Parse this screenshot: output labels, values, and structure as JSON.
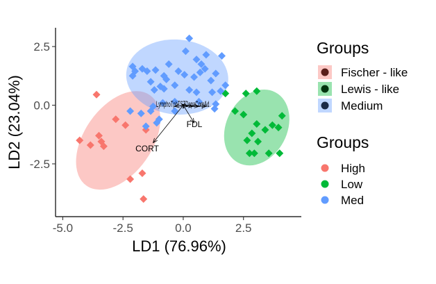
{
  "chart_data": {
    "type": "scatter",
    "xlabel": "LD1 (76.96%)",
    "ylabel": "LD2 (23.04%)",
    "xlim": [
      -5.3,
      4.9
    ],
    "ylim": [
      -4.75,
      3.3
    ],
    "xticks": [
      -5.0,
      -2.5,
      0.0,
      2.5
    ],
    "xtick_labels": [
      "-5.0",
      "-2.5",
      "0.0",
      "2.5"
    ],
    "yticks": [
      2.5,
      0.0,
      -2.5
    ],
    "ytick_labels": [
      "2.5",
      "0.0",
      "-2.5"
    ],
    "grid": false,
    "legend_position": "right",
    "ellipses": [
      {
        "group": "Fischer - like",
        "color": "#F8766D",
        "cx": -2.7,
        "cy": -1.5,
        "rx": 4.65,
        "ry": 1.9,
        "angle": -55
      },
      {
        "group": "Medium",
        "color": "#619CFF",
        "cx": -0.25,
        "cy": 1.2,
        "rx": 4.3,
        "ry": 2.1,
        "angle": 5
      },
      {
        "group": "Lewis - like",
        "color": "#00BA38",
        "cx": 3.05,
        "cy": -0.95,
        "rx": 3.35,
        "ry": 1.7,
        "angle": -62
      }
    ],
    "series": [
      {
        "name": "High",
        "color": "#F8766D",
        "points": [
          [
            -3.6,
            0.45
          ],
          [
            -2.8,
            -0.6
          ],
          [
            -3.5,
            -1.3
          ],
          [
            -3.4,
            -1.55
          ],
          [
            -3.3,
            -1.75
          ],
          [
            -4.3,
            -1.5
          ],
          [
            -3.85,
            -1.7
          ],
          [
            -2.4,
            -0.85
          ],
          [
            -1.7,
            -2.9
          ],
          [
            -2.2,
            -3.15
          ],
          [
            -1.65,
            -4.0
          ],
          [
            -1.55,
            -1.05
          ]
        ]
      },
      {
        "name": "Low",
        "color": "#00BA38",
        "points": [
          [
            2.6,
            0.5
          ],
          [
            3.05,
            0.6
          ],
          [
            2.15,
            -0.25
          ],
          [
            2.5,
            -0.4
          ],
          [
            3.05,
            -0.8
          ],
          [
            4.1,
            -0.45
          ],
          [
            3.7,
            -0.85
          ],
          [
            2.85,
            -1.2
          ],
          [
            3.4,
            -1.05
          ],
          [
            3.95,
            -0.95
          ],
          [
            2.65,
            -1.5
          ],
          [
            3.1,
            -1.55
          ],
          [
            2.75,
            -2.05
          ],
          [
            2.95,
            -2.05
          ],
          [
            3.55,
            -2.05
          ],
          [
            4.0,
            -2.05
          ],
          [
            1.75,
            0.5
          ]
        ]
      },
      {
        "name": "Med",
        "color": "#619CFF",
        "points": [
          [
            0.25,
            2.85
          ],
          [
            0.1,
            2.3
          ],
          [
            0.95,
            2.15
          ],
          [
            1.6,
            2.1
          ],
          [
            -2.1,
            1.65
          ],
          [
            -2.0,
            1.45
          ],
          [
            -1.7,
            1.55
          ],
          [
            -1.5,
            1.45
          ],
          [
            -1.15,
            1.5
          ],
          [
            -0.6,
            1.75
          ],
          [
            -0.2,
            1.45
          ],
          [
            0.55,
            1.95
          ],
          [
            0.75,
            1.75
          ],
          [
            0.9,
            1.55
          ],
          [
            0.7,
            1.4
          ],
          [
            1.35,
            1.35
          ],
          [
            -2.1,
            1.25
          ],
          [
            -1.35,
            1.0
          ],
          [
            -0.8,
            1.25
          ],
          [
            0.05,
            1.3
          ],
          [
            0.45,
            1.2
          ],
          [
            1.15,
            1.05
          ],
          [
            1.75,
            0.85
          ],
          [
            -0.8,
            0.7
          ],
          [
            -0.35,
            0.85
          ],
          [
            0.25,
            0.65
          ],
          [
            0.55,
            0.55
          ],
          [
            1.2,
            0.55
          ],
          [
            1.55,
            0.6
          ],
          [
            -1.2,
            0.65
          ],
          [
            -0.95,
            0.8
          ],
          [
            0.65,
            0.15
          ],
          [
            1.3,
            -0.15
          ],
          [
            1.35,
            0.05
          ],
          [
            -1.75,
            -0.35
          ],
          [
            -1.35,
            -0.25
          ],
          [
            -1.25,
            -0.05
          ],
          [
            -0.35,
            -0.25
          ],
          [
            -2.2,
            -0.25
          ],
          [
            -0.85,
            0.1
          ],
          [
            -1.0,
            -0.6
          ],
          [
            -1.55,
            -0.9
          ],
          [
            -1.1,
            -0.75
          ],
          [
            -0.7,
            1.1
          ],
          [
            -0.35,
            0.15
          ]
        ]
      }
    ],
    "arrows": [
      {
        "label": "CORT",
        "x": -1.25,
        "y": -1.6
      },
      {
        "label": "FDL",
        "x": 0.45,
        "y": -0.75
      },
      {
        "label": "Lympho",
        "x": -0.35,
        "y": -0.05
      },
      {
        "label": "Tph",
        "x": -0.05,
        "y": 0.05
      },
      {
        "label": "Prl",
        "x": 0.05,
        "y": 0.05
      },
      {
        "label": "TST",
        "x": 0.2,
        "y": -0.05
      },
      {
        "label": "Dopa",
        "x": 0.4,
        "y": -0.05
      },
      {
        "label": "Corp",
        "x": 0.65,
        "y": -0.05
      },
      {
        "label": "Ad.",
        "x": 0.95,
        "y": -0.05
      }
    ],
    "arrow_label_text": {
      "CORT": "CORT",
      "FDL": "FDL",
      "overlap": "Lymp‌h‌oTphTSTDopaCorpAd."
    },
    "legends": [
      {
        "title": "Groups",
        "kind": "fill",
        "items": [
          {
            "label": "Fischer - like",
            "color": "#F8766D"
          },
          {
            "label": "Lewis - like",
            "color": "#00BA38"
          },
          {
            "label": "Medium",
            "color": "#619CFF"
          }
        ]
      },
      {
        "title": "Groups",
        "kind": "point",
        "items": [
          {
            "label": "High",
            "color": "#F8766D"
          },
          {
            "label": "Low",
            "color": "#00BA38"
          },
          {
            "label": "Med",
            "color": "#619CFF"
          }
        ]
      }
    ]
  }
}
